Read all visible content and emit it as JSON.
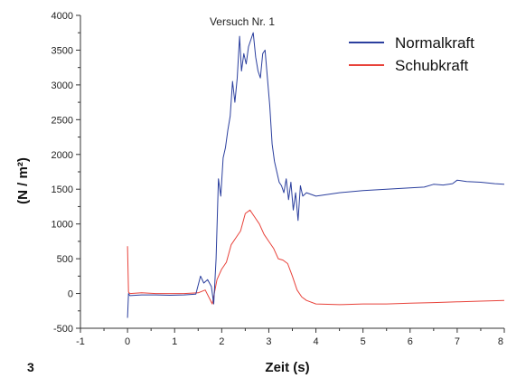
{
  "figure_number": "3",
  "chart_data": {
    "type": "line",
    "title": "Versuch Nr. 1",
    "xlabel": "Zeit (s)",
    "ylabel": "(N / m²)",
    "xlim": [
      -1,
      8
    ],
    "ylim": [
      -500,
      4000
    ],
    "xticks": [
      "-1",
      "0",
      "1",
      "2",
      "3",
      "4",
      "5",
      "6",
      "7",
      "8"
    ],
    "yticks": [
      "-500",
      "0",
      "500",
      "1000",
      "1500",
      "2000",
      "2500",
      "3000",
      "3500",
      "4000"
    ],
    "legend_position": "top-right",
    "series": [
      {
        "name": "Normalkraft",
        "color": "#2b3f9e",
        "x": [
          0,
          0.02,
          0.05,
          0.3,
          0.6,
          0.9,
          1.2,
          1.45,
          1.55,
          1.62,
          1.7,
          1.78,
          1.83,
          1.88,
          1.93,
          1.98,
          2.03,
          2.08,
          2.13,
          2.18,
          2.23,
          2.28,
          2.33,
          2.38,
          2.42,
          2.47,
          2.52,
          2.57,
          2.62,
          2.67,
          2.72,
          2.77,
          2.82,
          2.87,
          2.92,
          2.97,
          3.02,
          3.07,
          3.12,
          3.17,
          3.22,
          3.27,
          3.32,
          3.37,
          3.42,
          3.47,
          3.52,
          3.57,
          3.62,
          3.67,
          3.72,
          3.8,
          4.0,
          4.5,
          5.0,
          5.5,
          6.0,
          6.3,
          6.5,
          6.7,
          6.9,
          7.0,
          7.2,
          7.5,
          7.8,
          8.0
        ],
        "y": [
          -350,
          0,
          -30,
          -20,
          -20,
          -25,
          -20,
          -10,
          250,
          150,
          200,
          100,
          -150,
          500,
          1650,
          1400,
          1950,
          2100,
          2350,
          2550,
          3050,
          2750,
          3100,
          3700,
          3200,
          3450,
          3300,
          3550,
          3650,
          3750,
          3400,
          3200,
          3100,
          3450,
          3500,
          3100,
          2700,
          2150,
          1900,
          1750,
          1600,
          1550,
          1450,
          1650,
          1350,
          1600,
          1200,
          1450,
          1050,
          1550,
          1400,
          1450,
          1400,
          1450,
          1480,
          1500,
          1520,
          1530,
          1570,
          1560,
          1580,
          1630,
          1610,
          1600,
          1580,
          1570
        ]
      },
      {
        "name": "Schubkraft",
        "color": "#e8423a",
        "x": [
          0,
          0.02,
          0.05,
          0.3,
          0.6,
          0.9,
          1.2,
          1.5,
          1.65,
          1.8,
          1.9,
          2.0,
          2.1,
          2.2,
          2.3,
          2.4,
          2.5,
          2.6,
          2.7,
          2.8,
          2.9,
          3.0,
          3.1,
          3.2,
          3.3,
          3.4,
          3.5,
          3.6,
          3.7,
          3.8,
          4.0,
          4.5,
          5.0,
          5.5,
          6.0,
          6.5,
          7.0,
          7.5,
          8.0
        ],
        "y": [
          680,
          20,
          0,
          10,
          0,
          0,
          0,
          10,
          50,
          -150,
          200,
          350,
          450,
          700,
          800,
          900,
          1150,
          1200,
          1100,
          1000,
          850,
          750,
          650,
          500,
          480,
          430,
          250,
          50,
          -50,
          -100,
          -150,
          -160,
          -150,
          -150,
          -140,
          -130,
          -120,
          -110,
          -100
        ]
      }
    ]
  }
}
